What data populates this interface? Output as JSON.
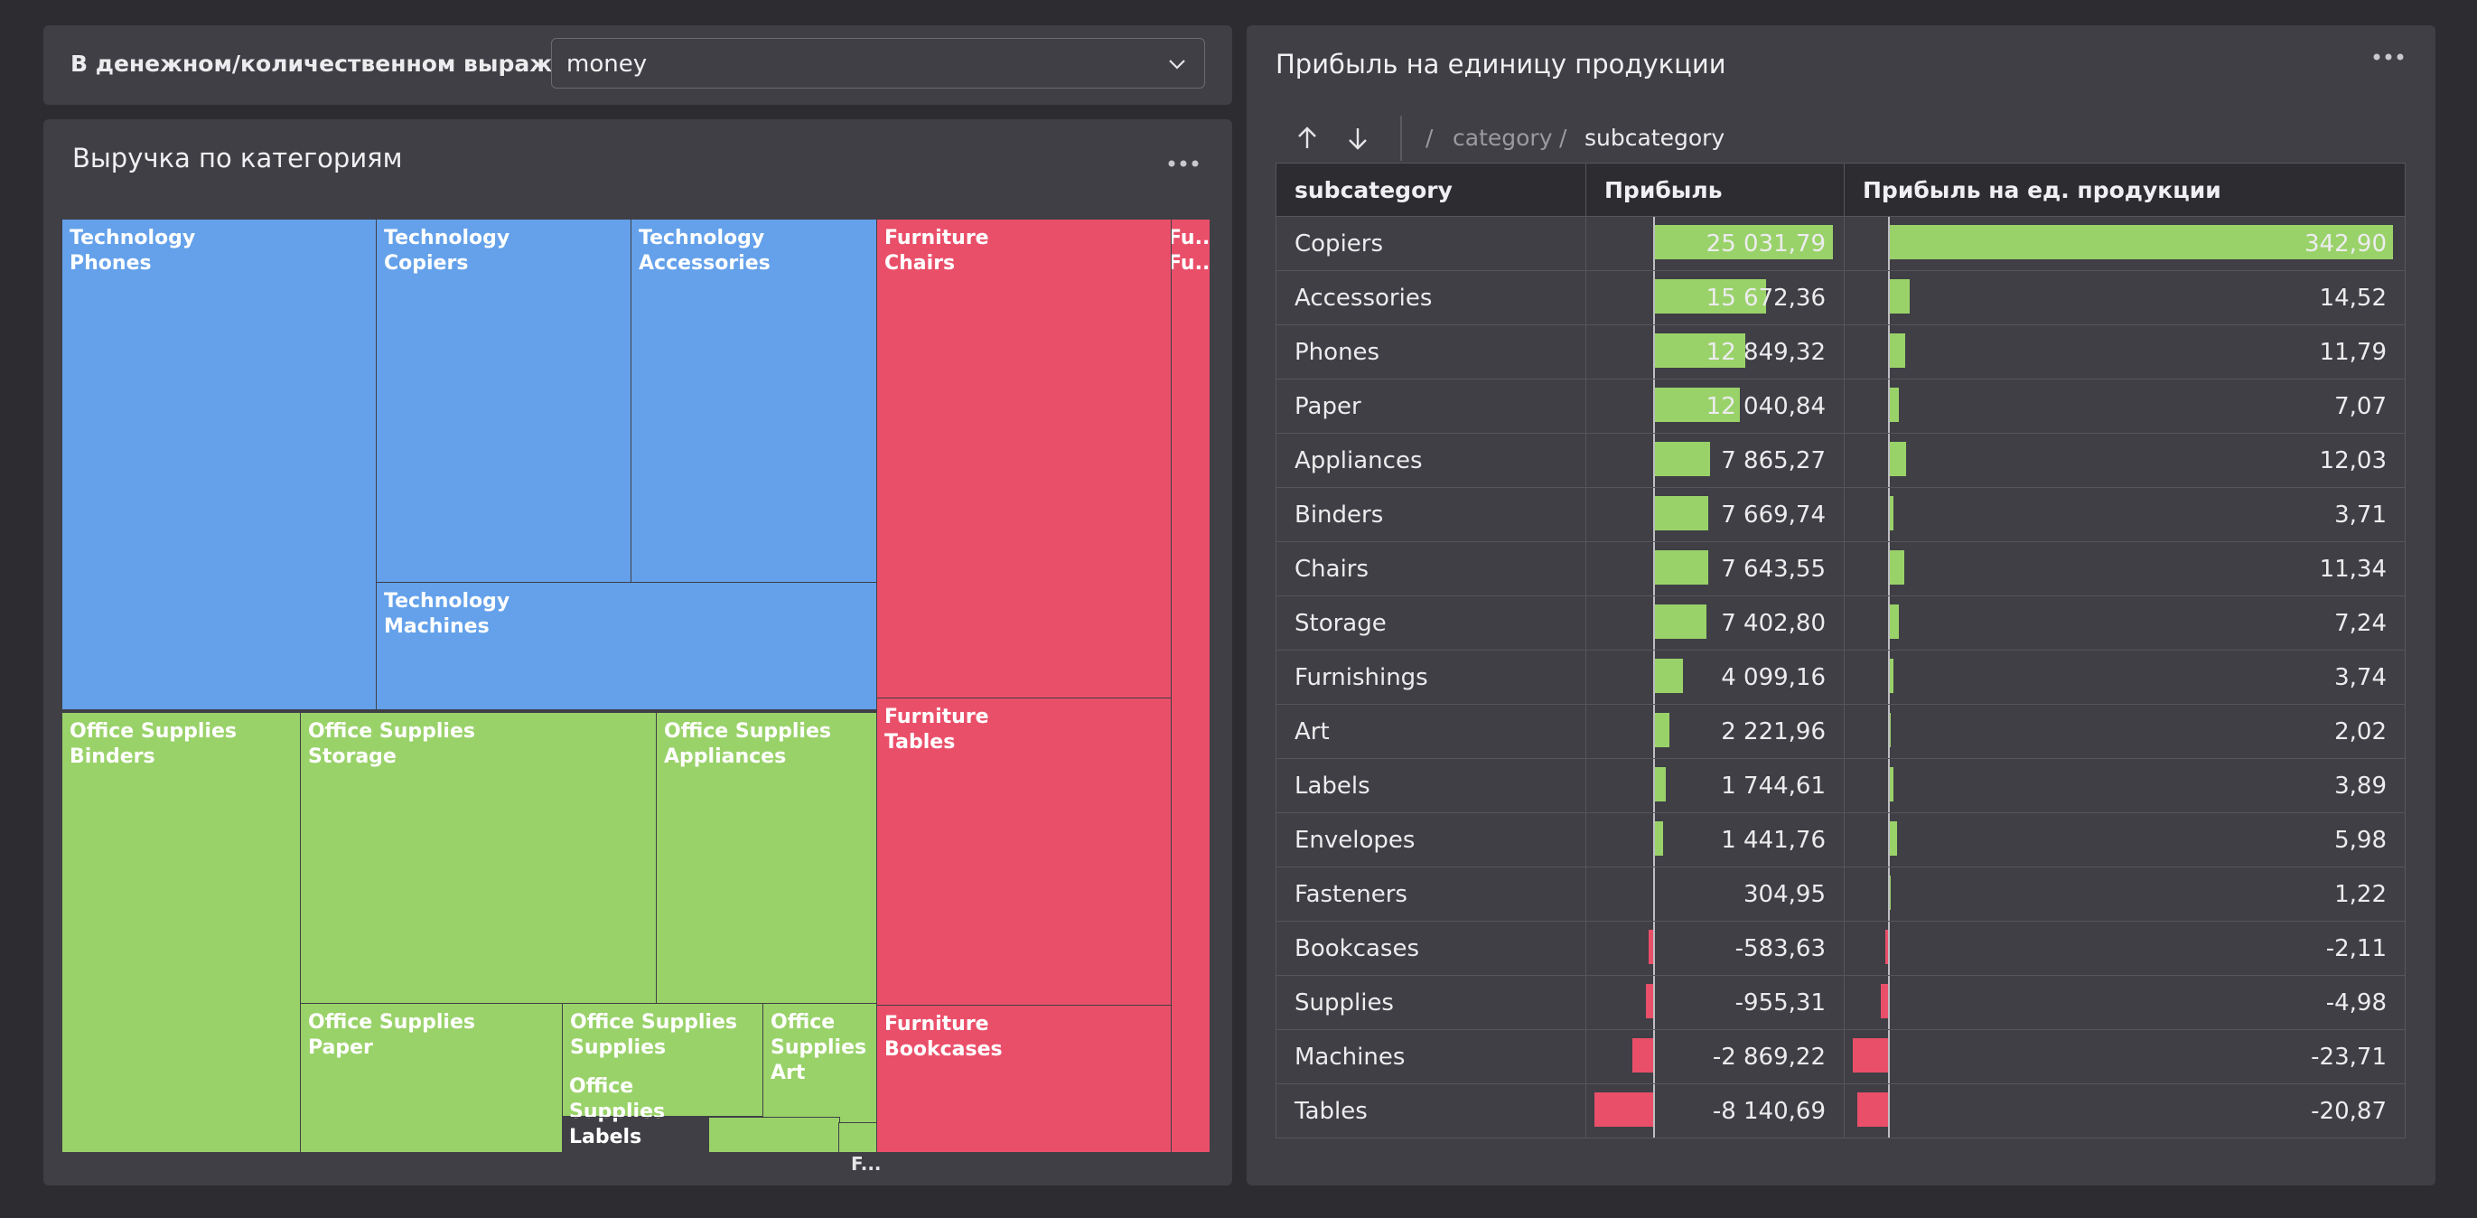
{
  "filter": {
    "label": "В денежном/количественном выражении",
    "value": "money"
  },
  "treemap": {
    "title": "Выручка по категориям",
    "tiles": [
      {
        "name": "tile-technology-phones",
        "label": "Technology\nPhones",
        "category": "Technology"
      },
      {
        "name": "tile-technology-copiers",
        "label": "Technology\nCopiers",
        "category": "Technology"
      },
      {
        "name": "tile-technology-accessories",
        "label": "Technology\nAccessories",
        "category": "Technology"
      },
      {
        "name": "tile-technology-machines",
        "label": "Technology\nMachines",
        "category": "Technology"
      },
      {
        "name": "tile-office-supplies-binders",
        "label": "Office Supplies\nBinders",
        "category": "Office Supplies"
      },
      {
        "name": "tile-office-supplies-storage",
        "label": "Office Supplies\nStorage",
        "category": "Office Supplies"
      },
      {
        "name": "tile-office-supplies-appliances",
        "label": "Office Supplies\nAppliances",
        "category": "Office Supplies"
      },
      {
        "name": "tile-office-supplies-paper",
        "label": "Office Supplies\nPaper",
        "category": "Office Supplies"
      },
      {
        "name": "tile-office-supplies-supplies",
        "label": "Office Supplies\nSupplies",
        "category": "Office Supplies"
      },
      {
        "name": "tile-office-supplies-art",
        "label": "Office\nSupplies\nArt",
        "category": "Office Supplies"
      },
      {
        "name": "tile-office-supplies-labels",
        "label": "Office\nSupplies\nLabels",
        "category": "Office Supplies"
      },
      {
        "name": "tile-office-supplies-small-1",
        "label": "",
        "category": "Office Supplies"
      },
      {
        "name": "tile-office-supplies-small-2",
        "label": "",
        "category": "Office Supplies"
      },
      {
        "name": "tile-furniture-chairs",
        "label": "Furniture\nChairs",
        "category": "Furniture"
      },
      {
        "name": "tile-furniture-tables",
        "label": "Furniture\nTables",
        "category": "Furniture"
      },
      {
        "name": "tile-furniture-bookcases",
        "label": "Furniture\nBookcases",
        "category": "Furniture"
      },
      {
        "name": "tile-furniture-furnishings",
        "label": "Fu...\nFu...",
        "category": "Furniture"
      }
    ],
    "overflow_label": "F...",
    "colors": {
      "Technology": "#64a1ea",
      "Office Supplies": "#9ad26a",
      "Furniture": "#ea4f6a"
    }
  },
  "table": {
    "title": "Прибыль на единицу продукции",
    "breadcrumbs": [
      "category",
      "subcategory"
    ],
    "columns": [
      "subcategory",
      "Прибыль",
      "Прибыль на ед. продукции"
    ],
    "rows": [
      {
        "subcategory": "Copiers",
        "profit": "25 031,79",
        "profit_value": 25031.79,
        "unit": "342,90",
        "unit_value": 342.9
      },
      {
        "subcategory": "Accessories",
        "profit": "15 672,36",
        "profit_value": 15672.36,
        "unit": "14,52",
        "unit_value": 14.52
      },
      {
        "subcategory": "Phones",
        "profit": "12 849,32",
        "profit_value": 12849.32,
        "unit": "11,79",
        "unit_value": 11.79
      },
      {
        "subcategory": "Paper",
        "profit": "12 040,84",
        "profit_value": 12040.84,
        "unit": "7,07",
        "unit_value": 7.07
      },
      {
        "subcategory": "Appliances",
        "profit": "7 865,27",
        "profit_value": 7865.27,
        "unit": "12,03",
        "unit_value": 12.03
      },
      {
        "subcategory": "Binders",
        "profit": "7 669,74",
        "profit_value": 7669.74,
        "unit": "3,71",
        "unit_value": 3.71
      },
      {
        "subcategory": "Chairs",
        "profit": "7 643,55",
        "profit_value": 7643.55,
        "unit": "11,34",
        "unit_value": 11.34
      },
      {
        "subcategory": "Storage",
        "profit": "7 402,80",
        "profit_value": 7402.8,
        "unit": "7,24",
        "unit_value": 7.24
      },
      {
        "subcategory": "Furnishings",
        "profit": "4 099,16",
        "profit_value": 4099.16,
        "unit": "3,74",
        "unit_value": 3.74
      },
      {
        "subcategory": "Art",
        "profit": "2 221,96",
        "profit_value": 2221.96,
        "unit": "2,02",
        "unit_value": 2.02
      },
      {
        "subcategory": "Labels",
        "profit": "1 744,61",
        "profit_value": 1744.61,
        "unit": "3,89",
        "unit_value": 3.89
      },
      {
        "subcategory": "Envelopes",
        "profit": "1 441,76",
        "profit_value": 1441.76,
        "unit": "5,98",
        "unit_value": 5.98
      },
      {
        "subcategory": "Fasteners",
        "profit": "304,95",
        "profit_value": 304.95,
        "unit": "1,22",
        "unit_value": 1.22
      },
      {
        "subcategory": "Bookcases",
        "profit": "-583,63",
        "profit_value": -583.63,
        "unit": "-2,11",
        "unit_value": -2.11
      },
      {
        "subcategory": "Supplies",
        "profit": "-955,31",
        "profit_value": -955.31,
        "unit": "-4,98",
        "unit_value": -4.98
      },
      {
        "subcategory": "Machines",
        "profit": "-2 869,22",
        "profit_value": -2869.22,
        "unit": "-23,71",
        "unit_value": -23.71
      },
      {
        "subcategory": "Tables",
        "profit": "-8 140,69",
        "profit_value": -8140.69,
        "unit": "-20,87",
        "unit_value": -20.87
      }
    ],
    "bar_colors": {
      "positive": "#9ad26a",
      "negative": "#ea4f6a"
    }
  }
}
